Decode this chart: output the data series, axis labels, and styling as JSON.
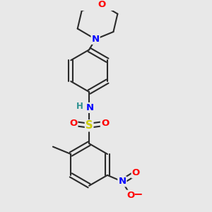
{
  "bg_color": "#e8e8e8",
  "bond_color": "#2a2a2a",
  "bond_width": 1.5,
  "atom_colors": {
    "N": "#0000ff",
    "O": "#ff0000",
    "S": "#cccc00",
    "H": "#2a9090",
    "C": "#2a2a2a"
  },
  "font_size": 9.5
}
